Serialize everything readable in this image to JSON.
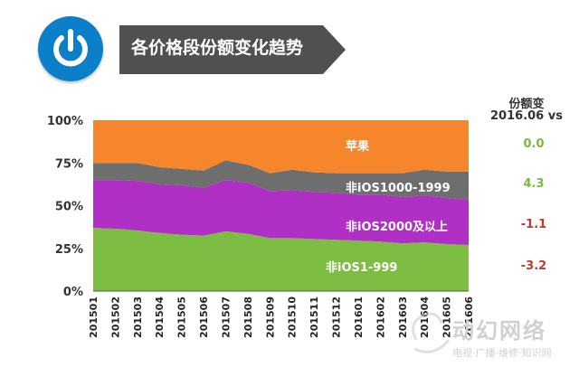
{
  "header": {
    "title": "各价格段份额变化趋势",
    "icon": "power-icon",
    "icon_color": "#0b7fc7",
    "banner_color": "#505050"
  },
  "share_change": {
    "header_line1": "份额变",
    "header_line2": "2016.06  vs",
    "values": [
      {
        "text": "0.0",
        "color": "#7db83a"
      },
      {
        "text": "4.3",
        "color": "#7db83a"
      },
      {
        "text": "-1.1",
        "color": "#c0392b"
      },
      {
        "text": "-3.2",
        "color": "#c0392b"
      }
    ]
  },
  "watermark": {
    "main": "动幻网络",
    "sub": "电视·广播·维修·知识网"
  },
  "chart_data": {
    "type": "area",
    "stacked": true,
    "title": "",
    "xlabel": "",
    "ylabel": "",
    "ylim": [
      0,
      100
    ],
    "y_ticks": [
      "0%",
      "25%",
      "50%",
      "75%",
      "100%"
    ],
    "grid": false,
    "x": [
      "201501",
      "201502",
      "201503",
      "201504",
      "201505",
      "201506",
      "201507",
      "201508",
      "201509",
      "201510",
      "201511",
      "201512",
      "201601",
      "201602",
      "201603",
      "201604",
      "201605",
      "201606"
    ],
    "series": [
      {
        "name": "非iOS1-999",
        "color": "#7dbd44",
        "values": [
          37,
          36.5,
          35.5,
          34,
          33,
          32.5,
          35,
          33.5,
          31,
          31,
          30.5,
          30,
          29.5,
          29,
          28,
          28.5,
          27.5,
          27
        ]
      },
      {
        "name": "非iOS1000-1999",
        "color": "#b02fc4",
        "values": [
          28,
          28.5,
          29,
          28.5,
          29,
          28,
          30,
          30,
          27.5,
          28,
          27.5,
          27.5,
          27,
          27.5,
          27,
          27.5,
          27,
          26.5
        ]
      },
      {
        "name": "非iOS2000及以上",
        "color": "#6e6e6e",
        "values": [
          10,
          10,
          10.5,
          10,
          9.5,
          10,
          11.5,
          10.5,
          10.5,
          12,
          11.5,
          11.5,
          12.5,
          12.5,
          14,
          15,
          15.5,
          16.5
        ]
      },
      {
        "name": "苹果",
        "color": "#f5862b",
        "values": [
          25,
          25,
          25,
          27.5,
          28.5,
          29.5,
          23.5,
          26,
          31,
          29,
          30.5,
          31,
          31,
          31,
          31,
          29,
          30,
          30
        ]
      }
    ]
  }
}
